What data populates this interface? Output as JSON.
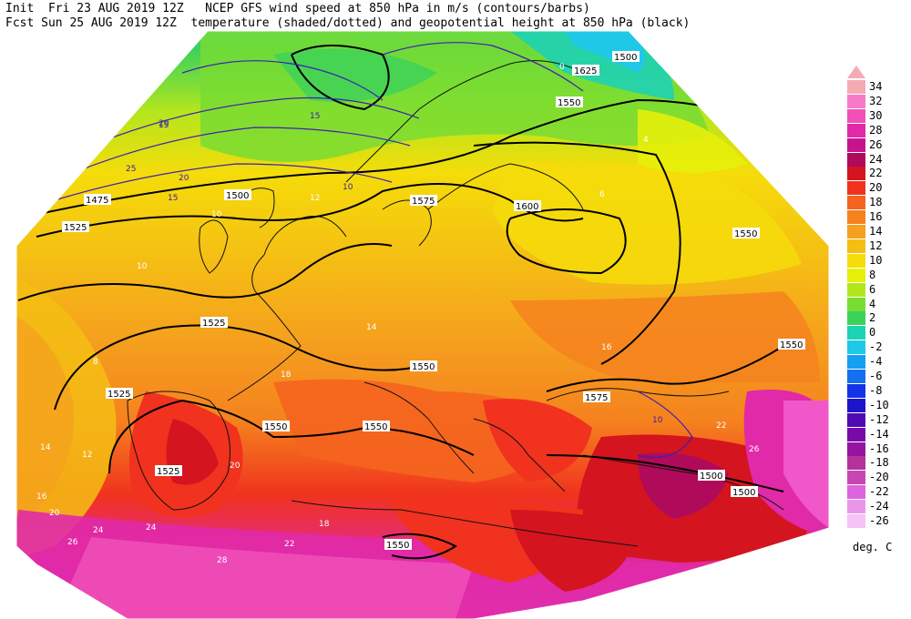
{
  "header": {
    "line1": "Init  Fri 23 AUG 2019 12Z   NCEP GFS wind speed at 850 hPa in m/s (contours/barbs)",
    "line2": "Fcst Sun 25 AUG 2019 12Z  temperature (shaded/dotted) and geopotential height at 850 hPa (black)"
  },
  "legend": {
    "unit": "deg. C",
    "levels": [
      {
        "label": "34",
        "color": "#f5aab4"
      },
      {
        "label": "32",
        "color": "#f57ac8"
      },
      {
        "label": "30",
        "color": "#f050b8"
      },
      {
        "label": "28",
        "color": "#e02aa8"
      },
      {
        "label": "26",
        "color": "#c8148c"
      },
      {
        "label": "24",
        "color": "#b00a5a"
      },
      {
        "label": "22",
        "color": "#d4141e"
      },
      {
        "label": "20",
        "color": "#f0321e"
      },
      {
        "label": "18",
        "color": "#f5641e"
      },
      {
        "label": "16",
        "color": "#f5821e"
      },
      {
        "label": "14",
        "color": "#f5a01e"
      },
      {
        "label": "12",
        "color": "#f5be14"
      },
      {
        "label": "10",
        "color": "#f5dc0a"
      },
      {
        "label": "8",
        "color": "#e6f00a"
      },
      {
        "label": "6",
        "color": "#b4e61e"
      },
      {
        "label": "4",
        "color": "#78dc32"
      },
      {
        "label": "2",
        "color": "#3cd25a"
      },
      {
        "label": "0",
        "color": "#1ed2b4"
      },
      {
        "label": "-2",
        "color": "#1ec8e6"
      },
      {
        "label": "-4",
        "color": "#14a0f0"
      },
      {
        "label": "-6",
        "color": "#1470f0"
      },
      {
        "label": "-8",
        "color": "#1432e6"
      },
      {
        "label": "-10",
        "color": "#1e14c8"
      },
      {
        "label": "-12",
        "color": "#500ab4"
      },
      {
        "label": "-14",
        "color": "#780aaa"
      },
      {
        "label": "-16",
        "color": "#9614a0"
      },
      {
        "label": "-18",
        "color": "#b4329b"
      },
      {
        "label": "-20",
        "color": "#c846b4"
      },
      {
        "label": "-22",
        "color": "#dc64dc"
      },
      {
        "label": "-24",
        "color": "#eb96eb"
      },
      {
        "label": "-26",
        "color": "#f5c3f5"
      }
    ]
  },
  "map": {
    "height_labels": [
      "1475",
      "1500",
      "1525",
      "1550",
      "1575",
      "1600",
      "1625"
    ],
    "height_label_sample": [
      "1475",
      "1500",
      "1500",
      "1525",
      "1525",
      "1525",
      "1550",
      "1550",
      "1550",
      "1550",
      "1550",
      "1575",
      "1575",
      "1600",
      "1625",
      "1500",
      "1550",
      "1500",
      "1525",
      "1550"
    ],
    "temp_label_sample": [
      "8",
      "10",
      "12",
      "14",
      "16",
      "18",
      "20",
      "22",
      "24",
      "26",
      "28",
      "26",
      "24",
      "22",
      "20",
      "18",
      "16",
      "14",
      "12",
      "10",
      "6",
      "4",
      "0"
    ],
    "wind_label_sample": [
      "15",
      "20",
      "25",
      "20",
      "15",
      "15",
      "10",
      "10"
    ]
  }
}
